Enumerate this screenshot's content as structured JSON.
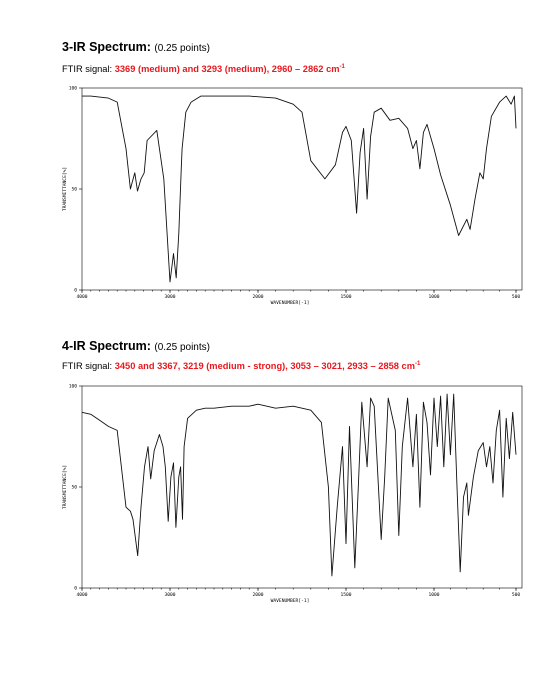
{
  "sections": [
    {
      "heading": "3-IR Spectrum:",
      "points": "(0.25 points)",
      "signal_label": "FTIR signal:",
      "signal_value": "3369 (medium) and 3293 (medium), 2960 – 2862 cm",
      "signal_sup": "-1"
    },
    {
      "heading": "4-IR Spectrum:",
      "points": "(0.25 points)",
      "signal_label": "FTIR signal:",
      "signal_value": "3450 and 3367, 3219 (medium - strong), 3053 – 3021, 2933 – 2858 cm",
      "signal_sup": "-1"
    }
  ],
  "chart_data": [
    {
      "type": "line",
      "ylabel": "TRANSMITTANCE[%]",
      "xlabel": "WAVENUMBER[-1]",
      "x_ticks": [
        "4000",
        "3000",
        "2000",
        "1500",
        "1000",
        "500"
      ],
      "y_ticks": [
        "100",
        "50",
        "0"
      ],
      "ylim": [
        0,
        100
      ],
      "series": [
        {
          "x": [
            4000,
            3900,
            3700,
            3600,
            3500,
            3450,
            3400,
            3369,
            3330,
            3293,
            3260,
            3150,
            3070,
            3000,
            2960,
            2930,
            2900,
            2870,
            2862,
            2820,
            2760,
            2650,
            2500,
            2300,
            2100,
            1900,
            1800,
            1750,
            1700,
            1620,
            1560,
            1520,
            1500,
            1470,
            1440,
            1420,
            1400,
            1380,
            1360,
            1340,
            1300,
            1250,
            1200,
            1150,
            1120,
            1100,
            1080,
            1060,
            1040,
            1000,
            960,
            900,
            850,
            800,
            780,
            750,
            720,
            700,
            680,
            650,
            600,
            560,
            530,
            510,
            500
          ],
          "y": [
            96,
            96,
            95,
            93,
            70,
            50,
            58,
            49,
            55,
            58,
            74,
            79,
            55,
            4,
            18,
            6,
            28,
            62,
            70,
            88,
            93,
            96,
            96,
            96,
            96,
            95,
            92,
            88,
            64,
            55,
            62,
            78,
            81,
            74,
            38,
            68,
            80,
            45,
            76,
            88,
            90,
            84,
            85,
            80,
            70,
            74,
            60,
            78,
            82,
            70,
            57,
            42,
            27,
            35,
            30,
            45,
            58,
            55,
            70,
            86,
            93,
            96,
            92,
            96,
            80
          ]
        }
      ]
    },
    {
      "type": "line",
      "ylabel": "TRANSMITTANCE[%]",
      "xlabel": "WAVENUMBER[-1]",
      "x_ticks": [
        "4000",
        "3000",
        "2000",
        "1500",
        "1000",
        "500"
      ],
      "y_ticks": [
        "100",
        "50",
        "0"
      ],
      "ylim": [
        0,
        100
      ],
      "series": [
        {
          "x": [
            4000,
            3900,
            3800,
            3700,
            3600,
            3500,
            3450,
            3420,
            3367,
            3330,
            3290,
            3250,
            3219,
            3180,
            3120,
            3080,
            3053,
            3021,
            2990,
            2960,
            2933,
            2900,
            2880,
            2858,
            2840,
            2800,
            2700,
            2600,
            2500,
            2300,
            2100,
            2000,
            1900,
            1800,
            1700,
            1640,
            1600,
            1580,
            1550,
            1520,
            1500,
            1480,
            1450,
            1430,
            1410,
            1380,
            1360,
            1340,
            1300,
            1280,
            1260,
            1220,
            1200,
            1180,
            1150,
            1120,
            1100,
            1080,
            1060,
            1040,
            1020,
            1000,
            980,
            960,
            940,
            920,
            900,
            880,
            860,
            840,
            820,
            800,
            790,
            760,
            730,
            700,
            680,
            660,
            640,
            620,
            600,
            580,
            560,
            540,
            520,
            500
          ],
          "y": [
            87,
            86,
            83,
            80,
            78,
            40,
            38,
            34,
            16,
            40,
            60,
            70,
            54,
            68,
            76,
            70,
            60,
            33,
            55,
            62,
            30,
            55,
            60,
            34,
            70,
            84,
            88,
            89,
            89,
            90,
            90,
            91,
            89,
            90,
            88,
            82,
            50,
            6,
            40,
            70,
            22,
            80,
            10,
            50,
            92,
            60,
            94,
            90,
            24,
            55,
            94,
            78,
            26,
            70,
            94,
            60,
            86,
            40,
            92,
            82,
            56,
            94,
            70,
            95,
            60,
            96,
            66,
            96,
            50,
            8,
            45,
            52,
            36,
            55,
            68,
            72,
            60,
            70,
            52,
            78,
            88,
            45,
            84,
            64,
            87,
            66
          ]
        }
      ]
    }
  ]
}
